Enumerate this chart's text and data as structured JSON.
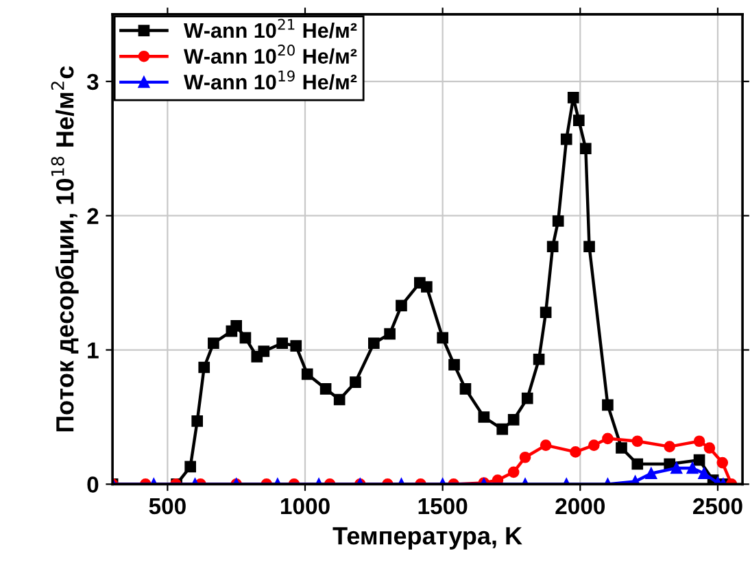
{
  "chart_data": {
    "type": "line",
    "xlabel": "Температура, K",
    "ylabel": "Поток десорбции, 10$^{18}$ He/м$^{2}$c",
    "xlim": [
      300,
      2590
    ],
    "ylim": [
      0,
      3.5
    ],
    "xticks": [
      500,
      1000,
      1500,
      2000,
      2500
    ],
    "yticks": [
      0,
      1,
      2,
      3
    ],
    "grid": true,
    "legend": "top left",
    "line_style": "solid",
    "series": [
      {
        "name": "W-ann 10$^{21}$ He/м²",
        "color": "#000000",
        "marker": "square",
        "x": [
          300,
          533,
          583,
          608,
          633,
          667,
          733,
          750,
          783,
          825,
          850,
          917,
          967,
          1008,
          1075,
          1125,
          1183,
          1250,
          1308,
          1350,
          1417,
          1442,
          1500,
          1542,
          1583,
          1650,
          1717,
          1758,
          1808,
          1850,
          1875,
          1900,
          1920,
          1950,
          1975,
          1995,
          2020,
          2033,
          2100,
          2150,
          2208,
          2325,
          2433,
          2483,
          2517
        ],
        "values": [
          0,
          0,
          0.13,
          0.47,
          0.87,
          1.05,
          1.14,
          1.18,
          1.09,
          0.95,
          0.99,
          1.05,
          1.03,
          0.82,
          0.71,
          0.63,
          0.76,
          1.05,
          1.12,
          1.33,
          1.5,
          1.47,
          1.09,
          0.89,
          0.71,
          0.5,
          0.41,
          0.48,
          0.64,
          0.93,
          1.28,
          1.77,
          1.96,
          2.57,
          2.88,
          2.71,
          2.5,
          1.77,
          0.59,
          0.27,
          0.15,
          0.15,
          0.18,
          0.03,
          0
        ]
      },
      {
        "name": "W-ann 10$^{20}$ He/м²",
        "color": "#ff0000",
        "marker": "circle",
        "x": [
          300,
          420,
          530,
          620,
          750,
          860,
          960,
          1090,
          1200,
          1300,
          1420,
          1540,
          1650,
          1700,
          1758,
          1800,
          1875,
          1983,
          2050,
          2100,
          2208,
          2325,
          2433,
          2470,
          2517,
          2550
        ],
        "values": [
          0,
          0,
          0,
          0,
          0,
          0,
          0,
          0,
          0,
          0,
          0,
          0,
          0.01,
          0.03,
          0.09,
          0.2,
          0.29,
          0.24,
          0.29,
          0.34,
          0.32,
          0.28,
          0.32,
          0.27,
          0.16,
          0
        ]
      },
      {
        "name": "W-ann 10$^{19}$ He/м²",
        "color": "#0000ff",
        "marker": "triangle",
        "x": [
          300,
          450,
          600,
          750,
          900,
          1050,
          1200,
          1350,
          1500,
          1650,
          1800,
          1950,
          2100,
          2200,
          2258,
          2350,
          2408,
          2450,
          2500,
          2520
        ],
        "values": [
          0,
          0,
          0,
          0,
          0,
          0,
          0,
          0,
          0,
          0,
          0,
          0,
          0,
          0.02,
          0.08,
          0.12,
          0.12,
          0.08,
          0.01,
          0
        ]
      }
    ]
  }
}
